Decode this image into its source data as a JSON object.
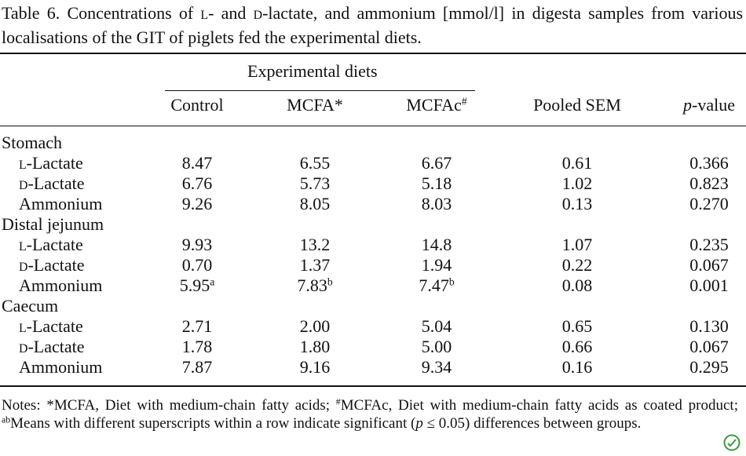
{
  "caption": "Table 6.  Concentrations of L- and D-lactate, and ammonium [mmol/l] in digesta samples from various localisations of the GIT of piglets fed the experimental diets.",
  "table": {
    "group_header": "Experimental diets",
    "columns": [
      "Control",
      "MCFA*",
      [
        {
          "text": "MCFAc"
        },
        {
          "text": "#",
          "style": "sup"
        }
      ],
      "Pooled SEM",
      [
        {
          "text": "p",
          "style": "italic"
        },
        {
          "text": "-value"
        }
      ]
    ],
    "rows": [
      {
        "label": "Stomach"
      },
      {
        "label": "L-Lactate",
        "cells": [
          "8.47",
          "6.55",
          "6.67",
          "0.61",
          "0.366"
        ]
      },
      {
        "label": "D-Lactate",
        "cells": [
          "6.76",
          "5.73",
          "5.18",
          "1.02",
          "0.823"
        ]
      },
      {
        "label": "Ammonium",
        "cells": [
          "9.26",
          "8.05",
          "8.03",
          "0.13",
          "0.270"
        ]
      },
      {
        "label": "Distal jejunum"
      },
      {
        "label": "L-Lactate",
        "cells": [
          "9.93",
          "13.2",
          "14.8",
          "1.07",
          "0.235"
        ]
      },
      {
        "label": "D-Lactate",
        "cells": [
          "0.70",
          "1.37",
          "1.94",
          "0.22",
          "0.067"
        ]
      },
      {
        "label": "Ammonium",
        "cells": [
          [
            {
              "text": "5.95"
            },
            {
              "text": "a",
              "style": "sup"
            }
          ],
          [
            {
              "text": "7.83"
            },
            {
              "text": "b",
              "style": "sup"
            }
          ],
          [
            {
              "text": "7.47"
            },
            {
              "text": "b",
              "style": "sup"
            }
          ],
          "0.08",
          "0.001"
        ]
      },
      {
        "label": "Caecum"
      },
      {
        "label": "L-Lactate",
        "cells": [
          "2.71",
          "2.00",
          "5.04",
          "0.65",
          "0.130"
        ]
      },
      {
        "label": "D-Lactate",
        "cells": [
          "1.78",
          "1.80",
          "5.00",
          "0.66",
          "0.067"
        ]
      },
      {
        "label": "Ammonium",
        "cells": [
          "7.87",
          "9.16",
          "9.34",
          "0.16",
          "0.295"
        ]
      }
    ]
  },
  "notes": [
    {
      "text": "Notes: *MCFA, Diet with medium-chain fatty acids; "
    },
    {
      "text": "#",
      "style": "sup"
    },
    {
      "text": "MCFAc, Diet with medium-chain fatty acids as coated product; "
    },
    {
      "text": "ab",
      "style": "sup"
    },
    {
      "text": "Means with different superscripts within a row indicate significant ("
    },
    {
      "text": "p",
      "style": "italic"
    },
    {
      "text": " ≤ 0.05) differences between groups."
    }
  ]
}
